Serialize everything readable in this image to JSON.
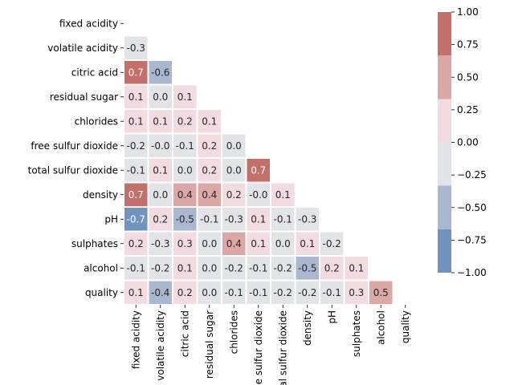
{
  "chart_data": {
    "type": "heatmap",
    "title": "",
    "xlabel": "",
    "ylabel": "",
    "variables": [
      "fixed acidity",
      "volatile acidity",
      "citric acid",
      "residual sugar",
      "chlorides",
      "free sulfur dioxide",
      "total sulfur dioxide",
      "density",
      "pH",
      "sulphates",
      "alcohol",
      "quality"
    ],
    "mask": "upper-triangle-and-diagonal",
    "values": [
      [
        null,
        null,
        null,
        null,
        null,
        null,
        null,
        null,
        null,
        null,
        null,
        null
      ],
      [
        -0.3,
        null,
        null,
        null,
        null,
        null,
        null,
        null,
        null,
        null,
        null,
        null
      ],
      [
        0.7,
        -0.6,
        null,
        null,
        null,
        null,
        null,
        null,
        null,
        null,
        null,
        null
      ],
      [
        0.1,
        0.0,
        0.1,
        null,
        null,
        null,
        null,
        null,
        null,
        null,
        null,
        null
      ],
      [
        0.1,
        0.1,
        0.2,
        0.1,
        null,
        null,
        null,
        null,
        null,
        null,
        null,
        null
      ],
      [
        -0.2,
        -0.0,
        -0.1,
        0.2,
        0.0,
        null,
        null,
        null,
        null,
        null,
        null,
        null
      ],
      [
        -0.1,
        0.1,
        0.0,
        0.2,
        0.0,
        0.7,
        null,
        null,
        null,
        null,
        null,
        null
      ],
      [
        0.7,
        0.0,
        0.4,
        0.4,
        0.2,
        -0.0,
        0.1,
        null,
        null,
        null,
        null,
        null
      ],
      [
        -0.7,
        0.2,
        -0.5,
        -0.1,
        -0.3,
        0.1,
        -0.1,
        -0.3,
        null,
        null,
        null,
        null
      ],
      [
        0.2,
        -0.3,
        0.3,
        0.0,
        0.4,
        0.1,
        0.0,
        0.1,
        -0.2,
        null,
        null,
        null
      ],
      [
        -0.1,
        -0.2,
        0.1,
        0.0,
        -0.2,
        -0.1,
        -0.2,
        -0.5,
        0.2,
        0.1,
        null,
        null
      ],
      [
        0.1,
        -0.4,
        0.2,
        0.0,
        -0.1,
        -0.1,
        -0.2,
        -0.2,
        -0.1,
        0.3,
        0.5,
        null
      ]
    ],
    "value_labels": [
      [],
      [
        "-0.3"
      ],
      [
        "0.7",
        "-0.6"
      ],
      [
        "0.1",
        "0.0",
        "0.1"
      ],
      [
        "0.1",
        "0.1",
        "0.2",
        "0.1"
      ],
      [
        "-0.2",
        "-0.0",
        "-0.1",
        "0.2",
        "0.0"
      ],
      [
        "-0.1",
        "0.1",
        "0.0",
        "0.2",
        "0.0",
        "0.7"
      ],
      [
        "0.7",
        "0.0",
        "0.4",
        "0.4",
        "0.2",
        "-0.0",
        "0.1"
      ],
      [
        "-0.7",
        "0.2",
        "-0.5",
        "-0.1",
        "-0.3",
        "0.1",
        "-0.1",
        "-0.3"
      ],
      [
        "0.2",
        "-0.3",
        "0.3",
        "0.0",
        "0.4",
        "0.1",
        "0.0",
        "0.1",
        "-0.2"
      ],
      [
        "-0.1",
        "-0.2",
        "0.1",
        "0.0",
        "-0.2",
        "-0.1",
        "-0.2",
        "-0.5",
        "0.2",
        "0.1"
      ],
      [
        "0.1",
        "-0.4",
        "0.2",
        "0.0",
        "-0.1",
        "-0.1",
        "-0.2",
        "-0.2",
        "-0.1",
        "0.3",
        "0.5"
      ]
    ],
    "colorbar": {
      "range": [
        -1.0,
        1.0
      ],
      "ticks": [
        1.0,
        0.75,
        0.5,
        0.25,
        0.0,
        -0.25,
        -0.5,
        -0.75,
        -1.0
      ],
      "tick_labels": [
        "1.00",
        "0.75",
        "0.50",
        "0.25",
        "0.00",
        "−0.25",
        "−0.50",
        "−0.75",
        "−1.00"
      ],
      "bins": [
        {
          "from": -1.0,
          "to": -0.6667,
          "color": "#7193c0"
        },
        {
          "from": -0.6667,
          "to": -0.3333,
          "color": "#a9b7cf"
        },
        {
          "from": -0.3333,
          "to": 0.0,
          "color": "#e3e4e8"
        },
        {
          "from": 0.0,
          "to": 0.3333,
          "color": "#f2dcdf"
        },
        {
          "from": 0.3333,
          "to": 0.6667,
          "color": "#dba8a6"
        },
        {
          "from": 0.6667,
          "to": 1.0,
          "color": "#c3706a"
        }
      ],
      "placement": "right"
    },
    "grid": false,
    "colors": {
      "text_dark": "#262626",
      "text_light": "#ffffff",
      "cell_border": "#ffffff"
    }
  }
}
